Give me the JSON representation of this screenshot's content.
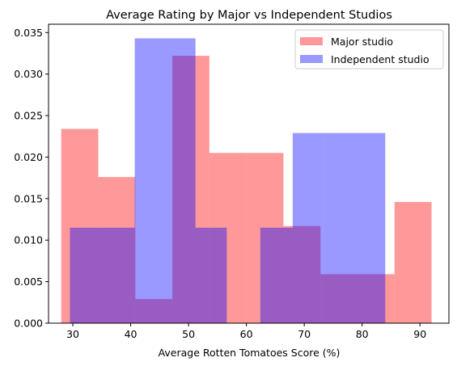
{
  "chart_data": {
    "type": "histogram",
    "title": "Average Rating by Major vs Independent Studios",
    "xlabel": "Average Rotten Tomatoes Score (%)",
    "ylabel": "",
    "xlim": [
      25.8,
      95.0
    ],
    "ylim": [
      0,
      0.036
    ],
    "xticks": [
      30,
      40,
      50,
      60,
      70,
      80,
      90
    ],
    "yticks": [
      0.0,
      0.005,
      0.01,
      0.015,
      0.02,
      0.025,
      0.03,
      0.035
    ],
    "ytick_labels": [
      "0.000",
      "0.005",
      "0.010",
      "0.015",
      "0.020",
      "0.025",
      "0.030",
      "0.035"
    ],
    "grid": false,
    "legend_position": "top-right",
    "series": [
      {
        "name": "Major studio",
        "color": "#ff0000",
        "alpha": 0.4,
        "bins": [
          {
            "x0": 28.0,
            "x1": 34.4,
            "value": 0.0234
          },
          {
            "x0": 34.4,
            "x1": 40.8,
            "value": 0.0176
          },
          {
            "x0": 40.8,
            "x1": 47.2,
            "value": 0.0029
          },
          {
            "x0": 47.2,
            "x1": 53.6,
            "value": 0.0322
          },
          {
            "x0": 53.6,
            "x1": 60.0,
            "value": 0.0205
          },
          {
            "x0": 60.0,
            "x1": 66.4,
            "value": 0.0205
          },
          {
            "x0": 66.4,
            "x1": 72.8,
            "value": 0.0117
          },
          {
            "x0": 72.8,
            "x1": 79.2,
            "value": 0.0059
          },
          {
            "x0": 79.2,
            "x1": 85.6,
            "value": 0.0059
          },
          {
            "x0": 85.6,
            "x1": 92.0,
            "value": 0.0146
          }
        ]
      },
      {
        "name": "Independent studio",
        "color": "#0000ff",
        "alpha": 0.4,
        "bins": [
          {
            "x0": 29.5,
            "x1": 40.7,
            "value": 0.0115
          },
          {
            "x0": 40.7,
            "x1": 51.2,
            "value": 0.0343
          },
          {
            "x0": 51.2,
            "x1": 56.6,
            "value": 0.0115
          },
          {
            "x0": 56.6,
            "x1": 62.4,
            "value": 0.0
          },
          {
            "x0": 62.4,
            "x1": 68.0,
            "value": 0.0115
          },
          {
            "x0": 68.0,
            "x1": 73.3,
            "value": 0.0229
          },
          {
            "x0": 73.3,
            "x1": 84.0,
            "value": 0.0229
          }
        ]
      }
    ]
  }
}
